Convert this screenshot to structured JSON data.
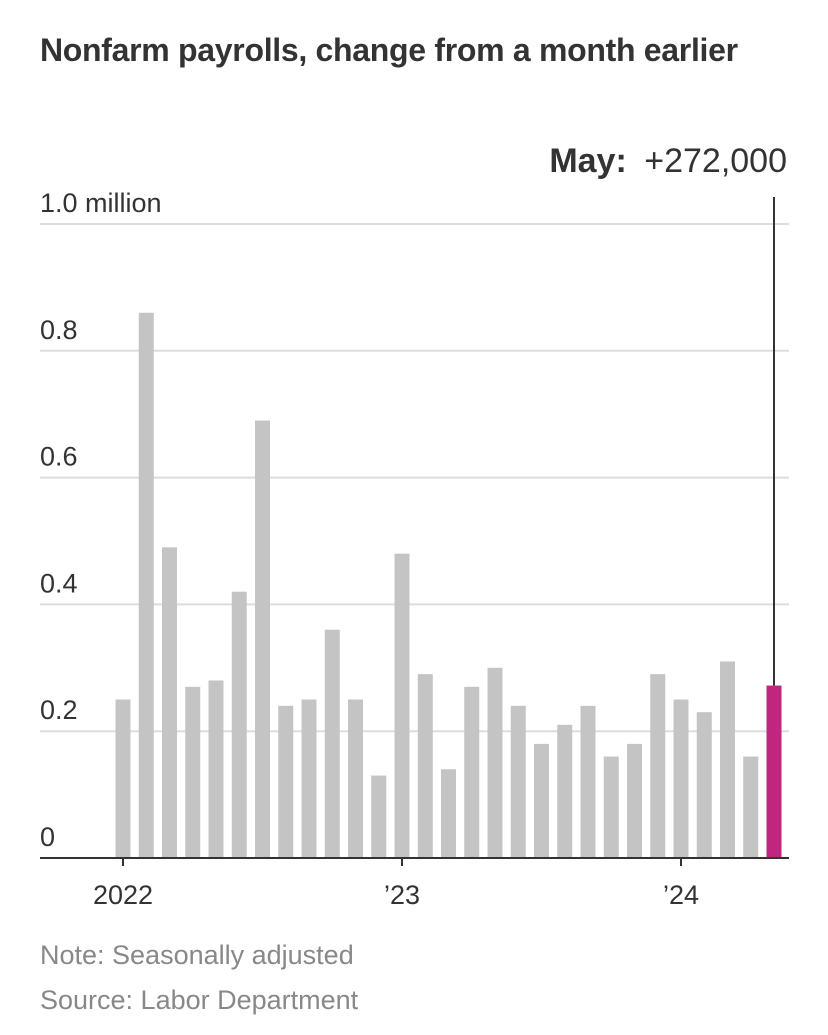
{
  "header": {
    "title": "Nonfarm payrolls, change from a month earlier"
  },
  "annotation": {
    "label": "May:",
    "value": "+272,000"
  },
  "notes": {
    "note": "Note: Seasonally adjusted",
    "source": "Source: Labor Department"
  },
  "colors": {
    "bar": "#c4c4c4",
    "highlight": "#c0267f",
    "grid": "#dddddd",
    "axis": "#333333",
    "text": "#333333"
  },
  "chart_data": {
    "type": "bar",
    "title": "Nonfarm payrolls, change from a month earlier",
    "xlabel": "",
    "ylabel": "",
    "ylim": [
      0,
      1.0
    ],
    "y_ticks": [
      {
        "value": 0,
        "label": "0"
      },
      {
        "value": 0.2,
        "label": "0.2"
      },
      {
        "value": 0.4,
        "label": "0.4"
      },
      {
        "value": 0.6,
        "label": "0.6"
      },
      {
        "value": 0.8,
        "label": "0.8"
      },
      {
        "value": 1.0,
        "label": "1.0 million"
      }
    ],
    "x_ticks": [
      {
        "index": 0,
        "label": "2022"
      },
      {
        "index": 12,
        "label": "’23"
      },
      {
        "index": 24,
        "label": "’24"
      }
    ],
    "categories": [
      "Jan 2022",
      "Feb 2022",
      "Mar 2022",
      "Apr 2022",
      "May 2022",
      "Jun 2022",
      "Jul 2022",
      "Aug 2022",
      "Sep 2022",
      "Oct 2022",
      "Nov 2022",
      "Dec 2022",
      "Jan 2023",
      "Feb 2023",
      "Mar 2023",
      "Apr 2023",
      "May 2023",
      "Jun 2023",
      "Jul 2023",
      "Aug 2023",
      "Sep 2023",
      "Oct 2023",
      "Nov 2023",
      "Dec 2023",
      "Jan 2024",
      "Feb 2024",
      "Mar 2024",
      "Apr 2024",
      "May 2024"
    ],
    "values": [
      0.25,
      0.86,
      0.49,
      0.27,
      0.28,
      0.42,
      0.69,
      0.24,
      0.25,
      0.36,
      0.25,
      0.13,
      0.48,
      0.29,
      0.14,
      0.27,
      0.3,
      0.24,
      0.18,
      0.21,
      0.24,
      0.16,
      0.18,
      0.29,
      0.25,
      0.23,
      0.31,
      0.16,
      0.272
    ],
    "highlight_index": 28,
    "grid": true
  }
}
